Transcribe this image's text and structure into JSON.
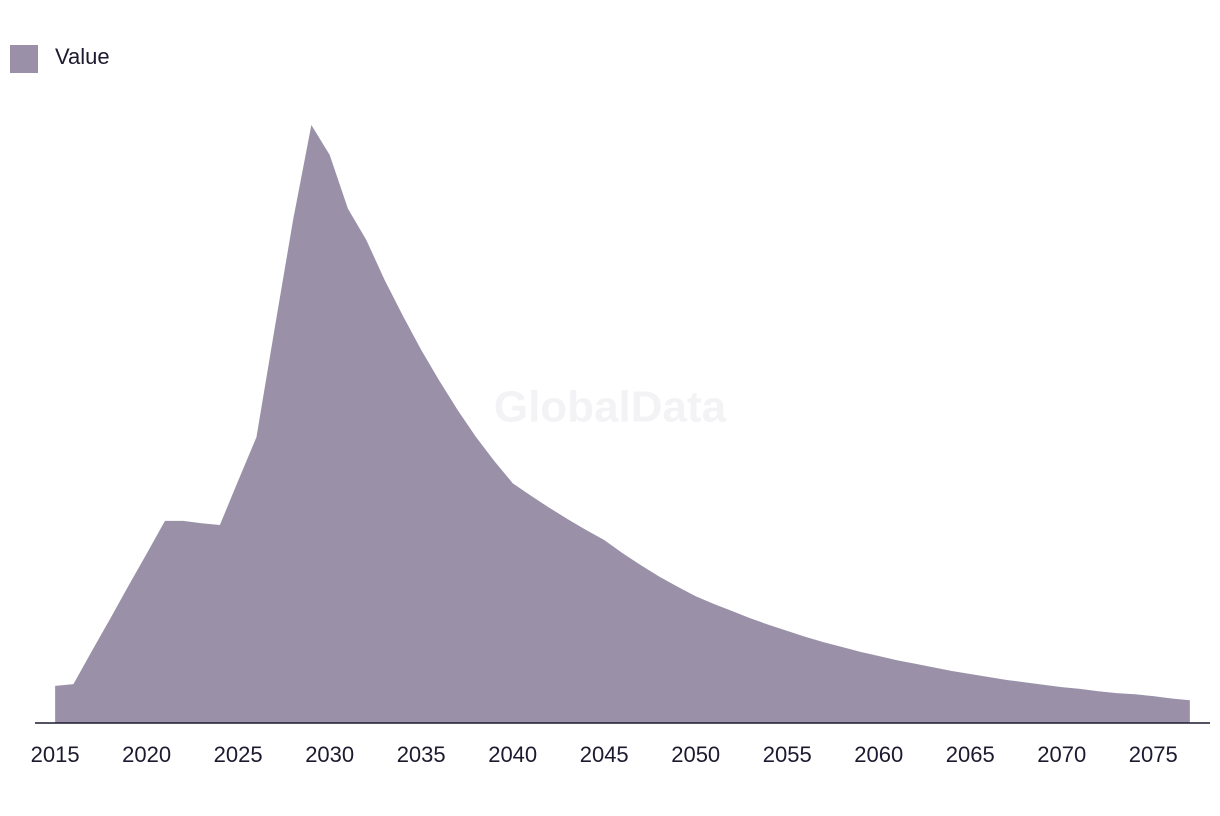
{
  "chart_data": {
    "type": "area",
    "watermark": "GlobalData",
    "legend": "top-left",
    "x": [
      2015,
      2016,
      2017,
      2018,
      2019,
      2020,
      2021,
      2022,
      2023,
      2024,
      2025,
      2026,
      2027,
      2028,
      2029,
      2030,
      2031,
      2032,
      2033,
      2034,
      2035,
      2036,
      2037,
      2038,
      2039,
      2040,
      2041,
      2042,
      2043,
      2044,
      2045,
      2046,
      2047,
      2048,
      2049,
      2050,
      2051,
      2052,
      2053,
      2054,
      2055,
      2056,
      2057,
      2058,
      2059,
      2060,
      2061,
      2062,
      2063,
      2064,
      2065,
      2066,
      2067,
      2068,
      2069,
      2070,
      2071,
      2072,
      2073,
      2074,
      2075,
      2076,
      2077
    ],
    "series": [
      {
        "name": "Value",
        "color": "#9a91a9",
        "values": [
          6.2,
          6.5,
          12.0,
          17.4,
          22.9,
          28.3,
          33.8,
          33.8,
          33.4,
          33.1,
          40.5,
          47.8,
          66.1,
          84.1,
          100,
          95.0,
          86.0,
          80.8,
          74.1,
          68.1,
          62.4,
          57.2,
          52.3,
          47.8,
          43.8,
          40.1,
          38.0,
          36.0,
          34.1,
          32.3,
          30.6,
          28.4,
          26.4,
          24.5,
          22.8,
          21.2,
          19.9,
          18.7,
          17.5,
          16.4,
          15.4,
          14.4,
          13.5,
          12.7,
          11.9,
          11.2,
          10.5,
          9.9,
          9.3,
          8.7,
          8.2,
          7.7,
          7.2,
          6.8,
          6.4,
          6.0,
          5.7,
          5.3,
          5.0,
          4.8,
          4.5,
          4.1,
          3.8
        ]
      }
    ],
    "xlim": [
      2013.9,
      2078.1
    ],
    "xticks": [
      2015,
      2020,
      2025,
      2030,
      2035,
      2040,
      2045,
      2050,
      2055,
      2060,
      2065,
      2070,
      2075
    ],
    "ylim": [
      0,
      100
    ]
  }
}
